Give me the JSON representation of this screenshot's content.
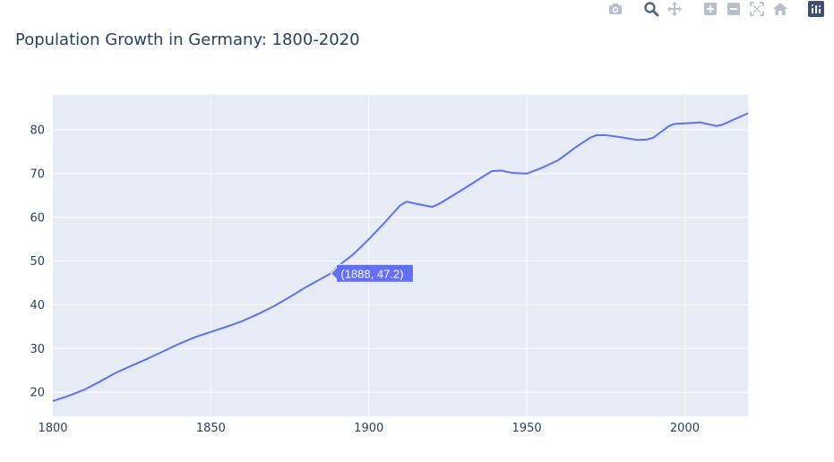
{
  "modebar": {
    "buttons": [
      {
        "name": "camera-icon",
        "group": 0
      },
      {
        "name": "zoom-icon",
        "group": 1
      },
      {
        "name": "pan-icon",
        "group": 1
      },
      {
        "name": "zoom-in-icon",
        "group": 2
      },
      {
        "name": "zoom-out-icon",
        "group": 2
      },
      {
        "name": "autoscale-icon",
        "group": 2
      },
      {
        "name": "reset-axes-icon",
        "group": 2
      },
      {
        "name": "plotly-logo-icon",
        "group": 3
      }
    ]
  },
  "colors": {
    "line": "#636efa",
    "plot_bg": "#e5ecf6",
    "grid": "#ffffff",
    "text": "#2a3f5f",
    "tooltip_bg": "#636efa"
  },
  "chart_data": {
    "type": "line",
    "title": "Population Growth in Germany: 1800-2020",
    "xlabel": "",
    "ylabel": "",
    "xlim": [
      1800,
      2020
    ],
    "ylim": [
      14.5,
      88
    ],
    "x_ticks": [
      1800,
      1850,
      1900,
      1950,
      2000
    ],
    "y_ticks": [
      20,
      30,
      40,
      50,
      60,
      70,
      80
    ],
    "grid": true,
    "legend": "none",
    "series": [
      {
        "x": [
          1800,
          1805,
          1810,
          1815,
          1820,
          1825,
          1830,
          1835,
          1840,
          1845,
          1850,
          1855,
          1860,
          1865,
          1870,
          1875,
          1880,
          1885,
          1888,
          1890,
          1895,
          1900,
          1905,
          1910,
          1912,
          1915,
          1920,
          1922,
          1925,
          1930,
          1935,
          1939,
          1942,
          1945,
          1950,
          1955,
          1960,
          1965,
          1970,
          1972,
          1975,
          1980,
          1985,
          1988,
          1990,
          1995,
          1997,
          2000,
          2005,
          2010,
          2012,
          2015,
          2020
        ],
        "y": [
          18,
          19.2,
          20.6,
          22.5,
          24.5,
          26.1,
          27.7,
          29.4,
          31.1,
          32.6,
          33.8,
          35,
          36.3,
          37.9,
          39.7,
          41.8,
          44,
          46,
          47.2,
          48.7,
          51.5,
          55,
          58.8,
          62.8,
          63.6,
          63.1,
          62.4,
          63,
          64.3,
          66.5,
          68.8,
          70.6,
          70.7,
          70.2,
          70,
          71.4,
          73.1,
          75.8,
          78.2,
          78.8,
          78.8,
          78.3,
          77.7,
          77.8,
          78.2,
          80.9,
          81.4,
          81.5,
          81.7,
          80.9,
          81.2,
          82.2,
          83.8
        ]
      }
    ],
    "hover": {
      "x": 1888,
      "y": 47.2,
      "label": "(1888, 47.2)"
    }
  }
}
